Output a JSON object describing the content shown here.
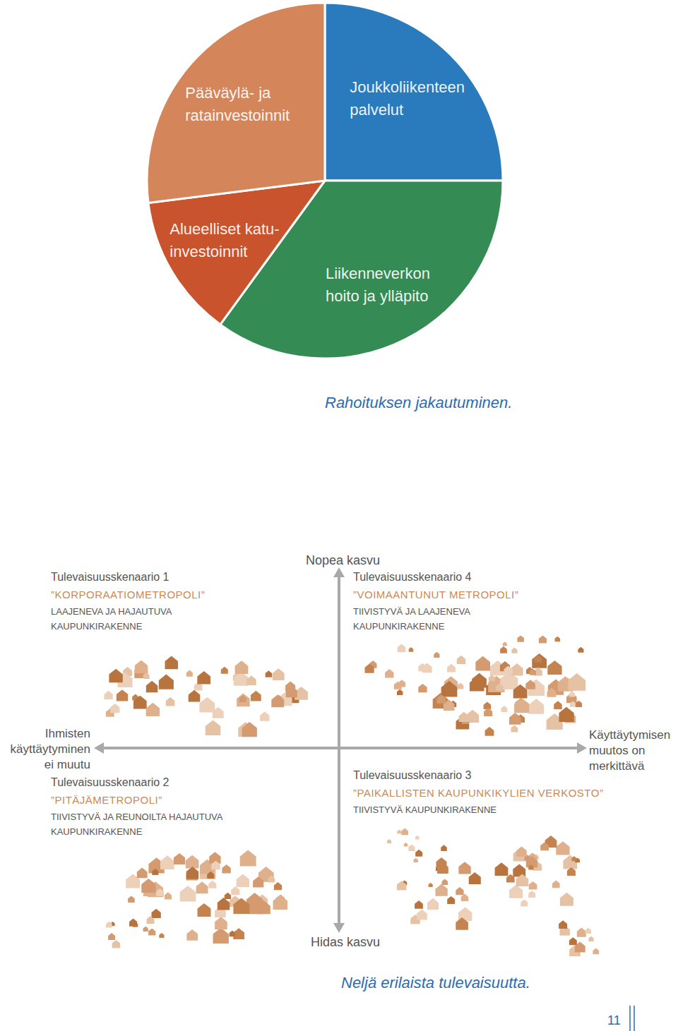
{
  "chart_data": {
    "type": "pie",
    "title": "Rahoituksen jakautuminen.",
    "categories": [
      "Joukkoliikenteen\npalvelut",
      "Liikenneverkon\nhoito ja ylläpito",
      "Alueelliset katu-\ninvestoinnit",
      "Pääväylä- ja\nratainvestoinnit"
    ],
    "values": [
      25,
      35,
      13,
      27
    ],
    "colors": [
      "#2a7bbd",
      "#348b53",
      "#c9532c",
      "#d5855a"
    ],
    "data_labels": false
  },
  "diagram": {
    "title": "Neljä erilaista tulevaisuutta.",
    "top_label": "Nopea kasvu",
    "bottom_label": "Hidas kasvu",
    "left_label": "Ihmisten\nkäyttäytyminen\nei muutu",
    "right_label": "Käyttäytymisen\nmuutos on\nmerkittävä",
    "scenarios": [
      {
        "title": "Tulevaisuusskenaario 1",
        "name": "”KORPORAATIOMETROPOLI”",
        "description": "LAAJENEVA JA HAJAUTUVA\nKAUPUNKIRAKENNE"
      },
      {
        "title": "Tulevaisuusskenaario 2",
        "name": "”PITÄJÄMETROPOLI”",
        "description": "TIIVISTYVÄ JA REUNOILTA HAJAUTUVA\nKAUPUNKIRAKENNE"
      },
      {
        "title": "Tulevaisuusskenaario 3",
        "name": "”PAIKALLISTEN KAUPUNKIKYLIEN VERKOSTO”",
        "description": "TIIVISTYVÄ KAUPUNKIRAKENNE"
      },
      {
        "title": "Tulevaisuusskenaario 4",
        "name": "”VOIMAANTUNUT METROPOLI”",
        "description": "TIIVISTYVÄ JA LAAJENEVA\nKAUPUNKIRAKENNE"
      }
    ]
  },
  "page_number": "11"
}
